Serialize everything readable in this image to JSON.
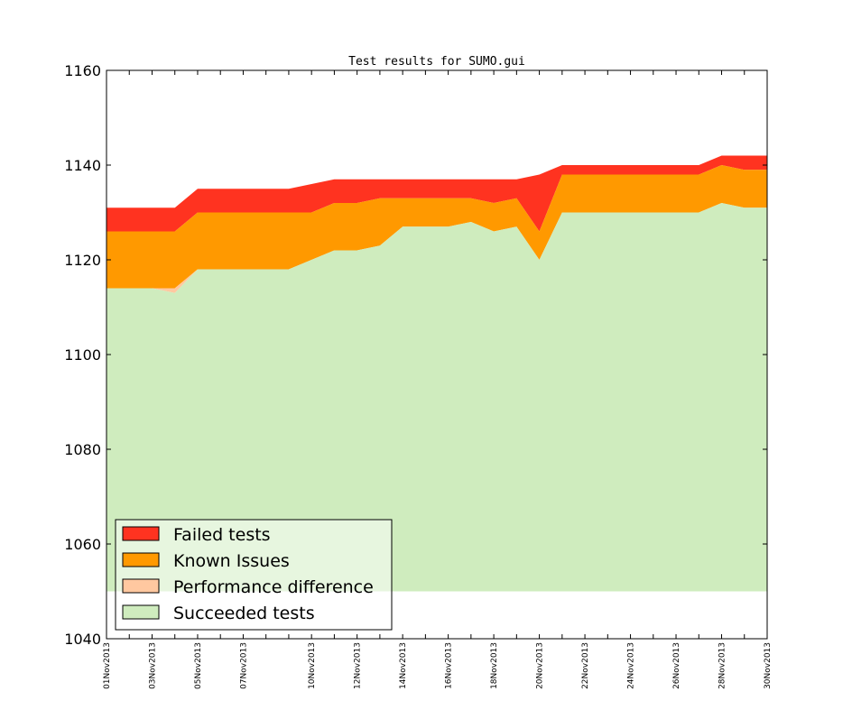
{
  "chart_data": {
    "type": "area",
    "title": "Test results for SUMO.gui",
    "xlabel": "",
    "ylabel": "",
    "ylim": [
      1040,
      1160
    ],
    "yticks": [
      1040,
      1060,
      1080,
      1100,
      1120,
      1140,
      1160
    ],
    "x_days": [
      1,
      2,
      3,
      4,
      5,
      6,
      7,
      8,
      9,
      10,
      11,
      12,
      13,
      14,
      15,
      16,
      17,
      18,
      19,
      20,
      21,
      22,
      23,
      24,
      25,
      26,
      27,
      28,
      29,
      30
    ],
    "x_tick_labels": [
      "01Nov2013",
      "03Nov2013",
      "05Nov2013",
      "07Nov2013",
      "10Nov2013",
      "12Nov2013",
      "14Nov2013",
      "16Nov2013",
      "18Nov2013",
      "20Nov2013",
      "22Nov2013",
      "24Nov2013",
      "26Nov2013",
      "28Nov2013",
      "30Nov2013"
    ],
    "area_base": 1050,
    "series": [
      {
        "name": "Succeeded tests",
        "color": "#cfecbe",
        "values": [
          1114,
          1114,
          1114,
          1113,
          1118,
          1118,
          1118,
          1118,
          1118,
          1120,
          1122,
          1122,
          1123,
          1127,
          1127,
          1127,
          1128,
          1126,
          1127,
          1120,
          1130,
          1130,
          1130,
          1130,
          1130,
          1130,
          1130,
          1132,
          1131,
          1131
        ]
      },
      {
        "name": "Performance difference",
        "color": "#ffc8a0",
        "values": [
          1114,
          1114,
          1114,
          1114,
          1118,
          1118,
          1118,
          1118,
          1118,
          1120,
          1122,
          1122,
          1123,
          1127,
          1127,
          1127,
          1128,
          1126,
          1127,
          1120,
          1130,
          1130,
          1130,
          1130,
          1130,
          1130,
          1130,
          1132,
          1131,
          1131
        ]
      },
      {
        "name": "Known Issues",
        "color": "#ff9900",
        "values": [
          1126,
          1126,
          1126,
          1126,
          1130,
          1130,
          1130,
          1130,
          1130,
          1130,
          1132,
          1132,
          1133,
          1133,
          1133,
          1133,
          1133,
          1132,
          1133,
          1126,
          1138,
          1138,
          1138,
          1138,
          1138,
          1138,
          1138,
          1140,
          1139,
          1139
        ]
      },
      {
        "name": "Failed tests",
        "color": "#ff3320",
        "values": [
          1131,
          1131,
          1131,
          1131,
          1135,
          1135,
          1135,
          1135,
          1135,
          1136,
          1137,
          1137,
          1137,
          1137,
          1137,
          1137,
          1137,
          1137,
          1137,
          1138,
          1140,
          1140,
          1140,
          1140,
          1140,
          1140,
          1140,
          1142,
          1142,
          1142
        ]
      }
    ],
    "legend": {
      "placement": "lower-left",
      "entries": [
        {
          "label": "Failed tests",
          "color": "#ff3320"
        },
        {
          "label": "Known Issues",
          "color": "#ff9900"
        },
        {
          "label": "Performance difference",
          "color": "#ffc8a0"
        },
        {
          "label": "Succeeded tests",
          "color": "#cfecbe"
        }
      ]
    }
  }
}
